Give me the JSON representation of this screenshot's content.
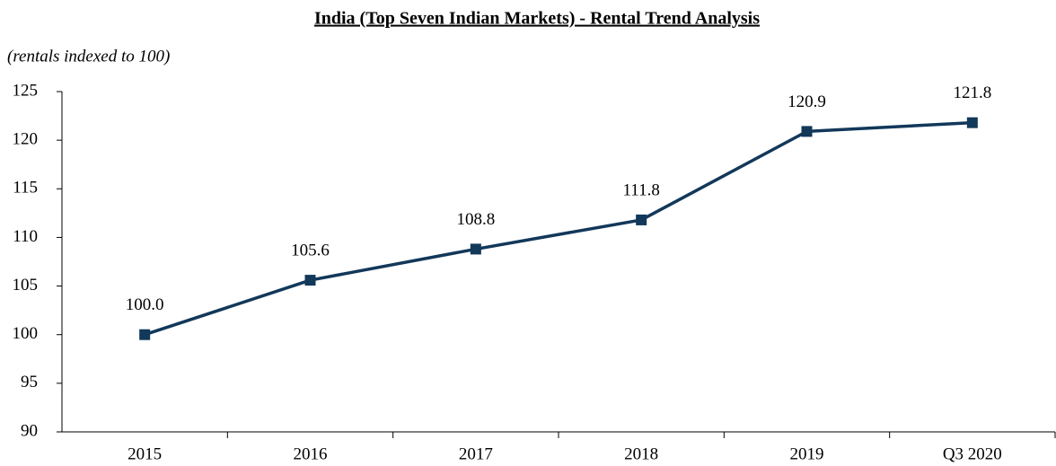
{
  "chart_data": {
    "type": "line",
    "title": "India (Top Seven Indian Markets) - Rental Trend Analysis",
    "subtitle": "(rentals indexed to 100)",
    "categories": [
      "2015",
      "2016",
      "2017",
      "2018",
      "2019",
      "Q3 2020"
    ],
    "series": [
      {
        "name": "Rental index",
        "color": "#12385a",
        "values": [
          100.0,
          105.6,
          108.8,
          111.8,
          120.9,
          121.8
        ],
        "value_labels": [
          "100.0",
          "105.6",
          "108.8",
          "111.8",
          "120.9",
          "121.8"
        ]
      }
    ],
    "ylim": [
      90,
      125
    ],
    "yticks": [
      90,
      95,
      100,
      105,
      110,
      115,
      120,
      125
    ],
    "grid": false
  }
}
